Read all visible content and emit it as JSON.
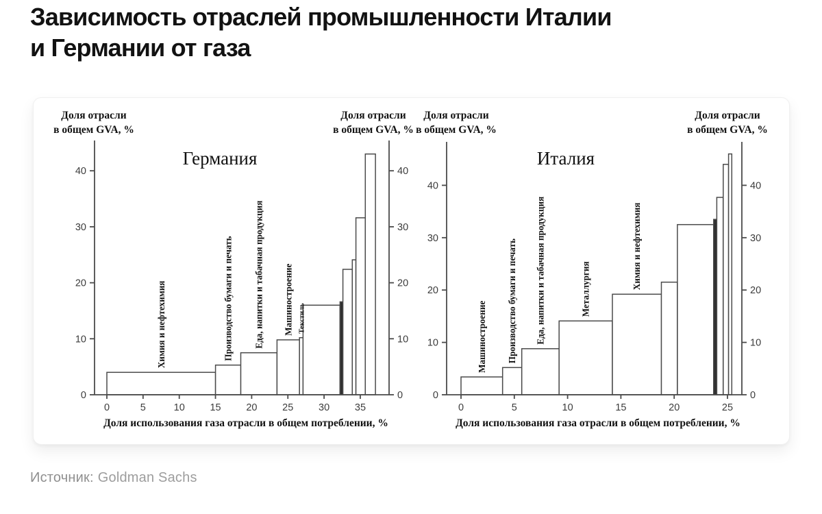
{
  "header": {
    "title_line1": "Зависимость отраслей промышленности Италии",
    "title_line2": "и Германии от газа"
  },
  "source": {
    "label": "Источник:",
    "value": "Goldman Sachs"
  },
  "colors": {
    "bar_stroke": "#4a4a4a",
    "bar_fill": "#ffffff",
    "bar_fill_dark": "#2e2e2e",
    "axis": "#4a4a4a",
    "tick_text": "#3c3c3c",
    "chart_text": "#111111",
    "title_text": "#121212",
    "source_text": "#9d9d9d"
  },
  "chart_data": [
    {
      "type": "bar",
      "variant": "variable-width-step-histogram",
      "title": "Германия",
      "xlabel": "Доля использования газа отрасли в общем потреблении, %",
      "ylabel_lines": [
        "Доля отрасли",
        "в общем GVA, %"
      ],
      "xticks": [
        0,
        5,
        10,
        15,
        20,
        25,
        30,
        35
      ],
      "yticks": [
        0,
        10,
        20,
        30,
        40
      ],
      "xlim": [
        0,
        39
      ],
      "ylim": [
        0,
        45
      ],
      "grid": false,
      "segments": [
        {
          "label": "Химия и нефтехимия",
          "x_start": 0,
          "x_end": 15,
          "value": 4.0
        },
        {
          "label": "Производство бумаги и печать",
          "x_start": 15,
          "x_end": 18.5,
          "value": 5.3
        },
        {
          "label": "Еда, напитки и табачная продукция",
          "x_start": 18.5,
          "x_end": 23.5,
          "value": 7.5
        },
        {
          "label": "Машиностроение",
          "x_start": 23.5,
          "x_end": 26.6,
          "value": 9.8
        },
        {
          "label": "Текстиль",
          "x_start": 26.6,
          "x_end": 27.1,
          "value": 10.2,
          "small_label": true
        },
        {
          "label": "",
          "x_start": 27.1,
          "x_end": 32.2,
          "value": 16.0
        },
        {
          "label": "",
          "x_start": 32.2,
          "x_end": 32.6,
          "value": 16.6,
          "filled": true
        },
        {
          "label": "",
          "x_start": 32.6,
          "x_end": 33.9,
          "value": 22.4
        },
        {
          "label": "",
          "x_start": 33.9,
          "x_end": 34.4,
          "value": 24.1
        },
        {
          "label": "",
          "x_start": 34.4,
          "x_end": 35.7,
          "value": 31.6
        },
        {
          "label": "",
          "x_start": 35.7,
          "x_end": 37.1,
          "value": 43.0
        }
      ]
    },
    {
      "type": "bar",
      "variant": "variable-width-step-histogram",
      "title": "Италия",
      "xlabel": "Доля использования газа отрасли в общем потреблении, %",
      "ylabel_lines": [
        "Доля отрасли",
        "в общем GVA, %"
      ],
      "xticks": [
        0,
        5,
        10,
        15,
        20,
        25
      ],
      "yticks": [
        0,
        10,
        20,
        30,
        40
      ],
      "xlim": [
        0,
        26.3
      ],
      "ylim": [
        0,
        48
      ],
      "grid": false,
      "segments": [
        {
          "label": "Машиностроение",
          "x_start": 0,
          "x_end": 3.9,
          "value": 3.4
        },
        {
          "label": "Производство бумаги и печать",
          "x_start": 3.9,
          "x_end": 5.7,
          "value": 5.2
        },
        {
          "label": "Еда, напитки и табачная продукция",
          "x_start": 5.7,
          "x_end": 9.2,
          "value": 8.8
        },
        {
          "label": "Металлургия",
          "x_start": 9.2,
          "x_end": 14.2,
          "value": 14.1
        },
        {
          "label": "Химия и нефтехимия",
          "x_start": 14.2,
          "x_end": 18.8,
          "value": 19.2
        },
        {
          "label": "",
          "x_start": 18.8,
          "x_end": 20.3,
          "value": 21.5
        },
        {
          "label": "",
          "x_start": 20.3,
          "x_end": 23.7,
          "value": 32.5
        },
        {
          "label": "",
          "x_start": 23.7,
          "x_end": 24.0,
          "value": 33.5,
          "filled": true
        },
        {
          "label": "",
          "x_start": 24.0,
          "x_end": 24.6,
          "value": 37.7
        },
        {
          "label": "",
          "x_start": 24.6,
          "x_end": 25.1,
          "value": 44.0
        },
        {
          "label": "",
          "x_start": 25.1,
          "x_end": 25.4,
          "value": 46.0
        }
      ]
    }
  ]
}
